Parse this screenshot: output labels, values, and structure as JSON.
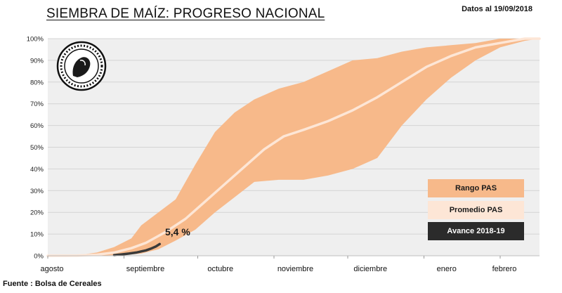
{
  "header": {
    "title": "SIEMBRA DE MAÍZ: PROGRESO NACIONAL",
    "date": "Datos al 19/09/2018"
  },
  "footer": {
    "source": "Fuente : Bolsa de Cereales"
  },
  "logo": {
    "name": "Bolsa de Cereales Buenos Aires seal"
  },
  "colors": {
    "plot_bg": "#efefef",
    "range": "#f7b98a",
    "average": "#fde6d6",
    "current": "#3a3a3a",
    "grid": "#d4d4d4"
  },
  "chart_data": {
    "type": "area",
    "title": "SIEMBRA DE MAÍZ: PROGRESO NACIONAL",
    "xlabel": "",
    "ylabel": "",
    "ylim": [
      0,
      100
    ],
    "xlim": [
      0,
      200
    ],
    "x_unit": "days since 1 August",
    "yticks": [
      "0%",
      "10%",
      "20%",
      "30%",
      "40%",
      "50%",
      "60%",
      "70%",
      "80%",
      "90%",
      "100%"
    ],
    "months": [
      {
        "label": "agosto",
        "day": 0
      },
      {
        "label": "septiembre",
        "day": 31
      },
      {
        "label": "octubre",
        "day": 61
      },
      {
        "label": "noviembre",
        "day": 92
      },
      {
        "label": "diciembre",
        "day": 122
      },
      {
        "label": "enero",
        "day": 153
      },
      {
        "label": "febrero",
        "day": 184
      }
    ],
    "series": [
      {
        "name": "Rango PAS",
        "kind": "band",
        "x": [
          0,
          12,
          20,
          27,
          34,
          38,
          45,
          52,
          60,
          68,
          76,
          84,
          94,
          104,
          114,
          124,
          134,
          144,
          154,
          164,
          174,
          184,
          194,
          200
        ],
        "upper": [
          0,
          0.3,
          1.5,
          4,
          8,
          14,
          20,
          26,
          42,
          57,
          66,
          72,
          77,
          80,
          85,
          90,
          91,
          94,
          96,
          97,
          98,
          100,
          100,
          100
        ],
        "lower": [
          0,
          0,
          0,
          0.3,
          0.6,
          1,
          3,
          7,
          12,
          20,
          27,
          34,
          35,
          35,
          37,
          40,
          45,
          60,
          72,
          82,
          90,
          96,
          99,
          100
        ]
      },
      {
        "name": "Promedio PAS",
        "kind": "line",
        "x": [
          0,
          12,
          20,
          27,
          34,
          40,
          48,
          56,
          64,
          72,
          80,
          88,
          96,
          104,
          114,
          124,
          134,
          144,
          154,
          164,
          174,
          184,
          194,
          200
        ],
        "values": [
          0,
          0.1,
          0.5,
          1.5,
          3.5,
          6,
          11,
          17,
          25,
          33,
          41,
          49,
          55,
          58,
          62,
          67,
          73,
          80,
          87,
          92,
          96,
          98,
          100,
          100
        ]
      },
      {
        "name": "Avance 2018-19",
        "kind": "line",
        "x": [
          27,
          30,
          33,
          36,
          38,
          40,
          42,
          44,
          45.5
        ],
        "values": [
          0.3,
          0.6,
          1,
          1.5,
          2,
          2.5,
          3.3,
          4.3,
          5.4
        ]
      }
    ],
    "annotations": [
      {
        "text": "5,4 %",
        "x": 45.5,
        "y": 5.4
      }
    ],
    "legend": {
      "position": "bottom-right",
      "entries": [
        {
          "label": "Rango PAS",
          "series": "Rango PAS"
        },
        {
          "label": "Promedio PAS",
          "series": "Promedio PAS"
        },
        {
          "label": "Avance 2018-19",
          "series": "Avance 2018-19"
        }
      ]
    },
    "grid": true
  }
}
